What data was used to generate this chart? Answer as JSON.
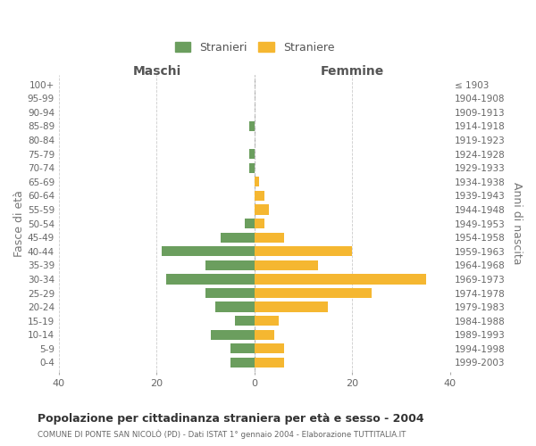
{
  "age_groups": [
    "100+",
    "95-99",
    "90-94",
    "85-89",
    "80-84",
    "75-79",
    "70-74",
    "65-69",
    "60-64",
    "55-59",
    "50-54",
    "45-49",
    "40-44",
    "35-39",
    "30-34",
    "25-29",
    "20-24",
    "15-19",
    "10-14",
    "5-9",
    "0-4"
  ],
  "birth_years": [
    "≤ 1903",
    "1904-1908",
    "1909-1913",
    "1914-1918",
    "1919-1923",
    "1924-1928",
    "1929-1933",
    "1934-1938",
    "1939-1943",
    "1944-1948",
    "1949-1953",
    "1954-1958",
    "1959-1963",
    "1964-1968",
    "1969-1973",
    "1974-1978",
    "1979-1983",
    "1984-1988",
    "1989-1993",
    "1994-1998",
    "1999-2003"
  ],
  "maschi": [
    0,
    0,
    0,
    1,
    0,
    1,
    1,
    0,
    0,
    0,
    2,
    7,
    19,
    10,
    18,
    10,
    8,
    4,
    9,
    5,
    5
  ],
  "femmine": [
    0,
    0,
    0,
    0,
    0,
    0,
    0,
    1,
    2,
    3,
    2,
    6,
    20,
    13,
    35,
    24,
    15,
    5,
    4,
    6,
    6
  ],
  "color_maschi": "#6b9e5e",
  "color_femmine": "#f5b731",
  "title": "Popolazione per cittadinanza straniera per età e sesso - 2004",
  "subtitle": "COMUNE DI PONTE SAN NICOLÒ (PD) - Dati ISTAT 1° gennaio 2004 - Elaborazione TUTTITALIA.IT",
  "left_label": "Maschi",
  "right_label": "Femmine",
  "ylabel_left": "Fasce di età",
  "ylabel_right": "Anni di nascita",
  "legend_maschi": "Stranieri",
  "legend_femmine": "Straniere",
  "xlim": 40,
  "background_color": "#ffffff",
  "grid_color": "#cccccc"
}
